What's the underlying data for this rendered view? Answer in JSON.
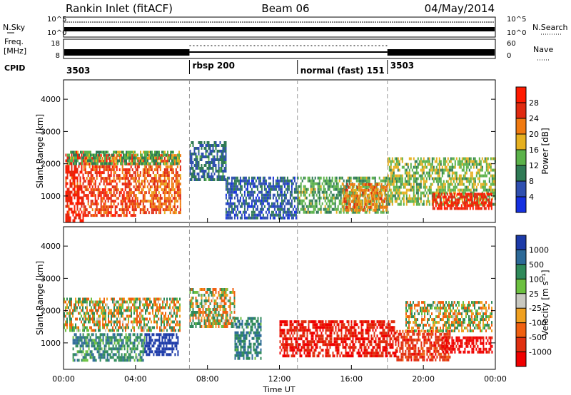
{
  "header": {
    "station": "Rankin Inlet (fitACF)",
    "beam": "Beam 06",
    "date": "04/May/2014"
  },
  "strips": {
    "nsky_label": "N.Sky",
    "nsearch_label": "N.Search",
    "freq_label_1": "Freq.",
    "freq_label_2": "[MHz]",
    "nave_label": "Nave",
    "cpid_label": "CPID",
    "left_ticks_top": [
      "10^5",
      "10^0"
    ],
    "right_ticks_top": [
      "10^5",
      "10^0"
    ],
    "left_ticks_freq": [
      "18",
      "8"
    ],
    "right_ticks_nave": [
      "60",
      "0"
    ]
  },
  "cpid": [
    {
      "start": 0,
      "label": "3503"
    },
    {
      "start": 7,
      "label": "rbsp 200"
    },
    {
      "start": 13,
      "label": "normal (fast) 151"
    },
    {
      "start": 18,
      "label": "3503"
    }
  ],
  "axes": {
    "xlabel": "Time UT",
    "ylabel_power": "Slant Range [km]",
    "ylabel_velocity": "Slant Range [km]",
    "xticks": [
      "00:00",
      "04:00",
      "08:00",
      "12:00",
      "16:00",
      "20:00",
      "00:00"
    ],
    "yticks": [
      "1000",
      "2000",
      "3000",
      "4000"
    ]
  },
  "colorbars": {
    "power": {
      "label": "Power [dB]",
      "ticks": [
        "4",
        "8",
        "12",
        "16",
        "20",
        "24",
        "28"
      ],
      "colors": [
        "#1530e0",
        "#2f4fb0",
        "#2f7a55",
        "#5bb24a",
        "#e6b020",
        "#f07a10",
        "#e02a10",
        "#ff1a00"
      ]
    },
    "velocity": {
      "label": "Velocity [m s⁻¹]",
      "ticks": [
        "1000",
        "500",
        "100",
        "25",
        "-25",
        "-100",
        "-500",
        "-1000"
      ],
      "colors": [
        "#1c3aa8",
        "#2d6a98",
        "#2f8a5a",
        "#6cc040",
        "#c8c8c0",
        "#f0a020",
        "#f06010",
        "#e03010",
        "#f00000"
      ]
    }
  },
  "chart_data": [
    {
      "type": "heatmap",
      "title": "Power",
      "xlabel": "Time UT",
      "ylabel": "Slant Range [km]",
      "xlim": [
        0,
        24
      ],
      "ylim": [
        180,
        4600
      ],
      "colorbar": "Power [dB]",
      "zlim": [
        0,
        30
      ],
      "regions": [
        {
          "t0": 0.1,
          "t1": 1.1,
          "r0": 200,
          "r1": 2400,
          "value": 26
        },
        {
          "t0": 1.1,
          "t1": 4.0,
          "r0": 400,
          "r1": 2300,
          "value": 24
        },
        {
          "t0": 4.0,
          "t1": 6.5,
          "r0": 500,
          "r1": 2300,
          "value": 22
        },
        {
          "t0": 0.2,
          "t1": 6.4,
          "r0": 2000,
          "r1": 2400,
          "value": 12
        },
        {
          "t0": 7.0,
          "t1": 9.0,
          "r0": 1500,
          "r1": 2700,
          "value": 8
        },
        {
          "t0": 9.0,
          "t1": 13.0,
          "r0": 300,
          "r1": 1600,
          "value": 6
        },
        {
          "t0": 13.0,
          "t1": 18.0,
          "r0": 500,
          "r1": 1600,
          "value": 12
        },
        {
          "t0": 15.5,
          "t1": 18.0,
          "r0": 600,
          "r1": 1400,
          "value": 20
        },
        {
          "t0": 18.0,
          "t1": 24.0,
          "r0": 700,
          "r1": 2200,
          "value": 14
        },
        {
          "t0": 20.5,
          "t1": 23.8,
          "r0": 600,
          "r1": 1100,
          "value": 27
        }
      ]
    },
    {
      "type": "heatmap",
      "title": "Velocity",
      "xlabel": "Time UT",
      "ylabel": "Slant Range [km]",
      "xlim": [
        0,
        24
      ],
      "ylim": [
        180,
        4600
      ],
      "colorbar": "Velocity [m s⁻¹]",
      "zlim": [
        -1000,
        1000
      ],
      "regions": [
        {
          "t0": 0.0,
          "t1": 6.5,
          "r0": 1400,
          "r1": 2400,
          "value": 0
        },
        {
          "t0": 0.5,
          "t1": 4.5,
          "r0": 500,
          "r1": 1300,
          "value": 150
        },
        {
          "t0": 4.5,
          "t1": 6.4,
          "r0": 600,
          "r1": 1300,
          "value": 600
        },
        {
          "t0": 7.0,
          "t1": 9.5,
          "r0": 1500,
          "r1": 2700,
          "value": 0
        },
        {
          "t0": 9.5,
          "t1": 11.0,
          "r0": 500,
          "r1": 1800,
          "value": 200
        },
        {
          "t0": 12.0,
          "t1": 18.5,
          "r0": 600,
          "r1": 1700,
          "value": -400
        },
        {
          "t0": 18.5,
          "t1": 21.5,
          "r0": 500,
          "r1": 1400,
          "value": -300
        },
        {
          "t0": 19.0,
          "t1": 23.8,
          "r0": 1400,
          "r1": 2300,
          "value": 0
        },
        {
          "t0": 21.0,
          "t1": 23.8,
          "r0": 700,
          "r1": 1200,
          "value": -500
        }
      ]
    }
  ]
}
